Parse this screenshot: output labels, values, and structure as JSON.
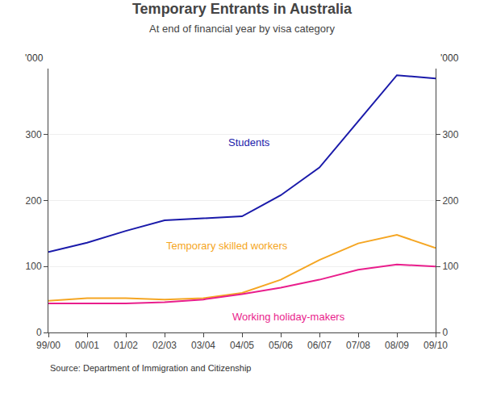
{
  "chart_data": {
    "type": "line",
    "title": "Temporary Entrants in Australia",
    "subtitle": "At end of financial year by visa category",
    "annotations": [
      "Source: Department of Immigration and Citizenship"
    ],
    "ylabel": "'000",
    "y2label": "'000",
    "categories": [
      "99/00",
      "00/01",
      "01/02",
      "02/03",
      "03/04",
      "04/05",
      "05/06",
      "06/07",
      "07/08",
      "08/09",
      "09/10"
    ],
    "series": [
      {
        "name": "Students",
        "color": "#1a1aaa",
        "values": [
          122,
          136,
          154,
          170,
          173,
          176,
          208,
          250,
          320,
          390,
          385
        ]
      },
      {
        "name": "Temporary skilled workers",
        "color": "#f5a623",
        "values": [
          48,
          52,
          52,
          50,
          52,
          60,
          80,
          110,
          135,
          148,
          128
        ]
      },
      {
        "name": "Working holiday-makers",
        "color": "#e91e8c",
        "values": [
          44,
          44,
          44,
          46,
          50,
          58,
          68,
          80,
          95,
          103,
          100
        ]
      }
    ],
    "ylim": [
      0,
      400
    ],
    "yticks": [
      0,
      100,
      200,
      300
    ],
    "y2lim": [
      0,
      400
    ],
    "y2ticks": [
      0,
      100,
      200,
      300
    ],
    "grid": true
  }
}
